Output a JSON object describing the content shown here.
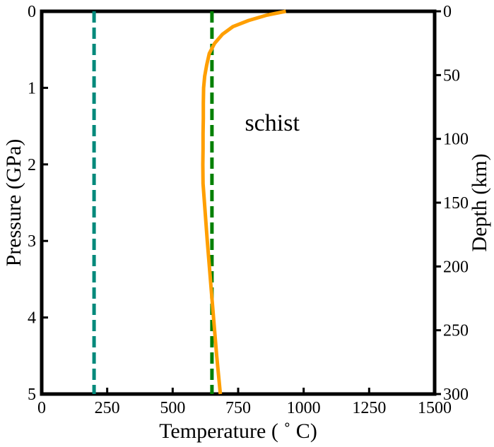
{
  "chart_data": {
    "type": "line",
    "xlabel": "Temperature ( ˚ C)",
    "ylabel": "Pressure (GPa)",
    "y2label": "Depth (km)",
    "xlim": [
      0,
      1500
    ],
    "ylim": [
      5,
      0
    ],
    "y2lim": [
      300,
      0
    ],
    "y_inverted": true,
    "grid": false,
    "x_ticks": [
      0,
      250,
      500,
      750,
      1000,
      1250,
      1500
    ],
    "y_ticks": [
      0,
      1,
      2,
      3,
      4,
      5
    ],
    "y2_ticks": [
      0,
      50,
      100,
      150,
      200,
      250,
      300
    ],
    "annotation": {
      "text": "schist",
      "x": 880,
      "pressure": 1.45
    },
    "series": [
      {
        "style": "dashed",
        "color": "#00897b",
        "x": [
          200,
          200
        ],
        "y": [
          0,
          5
        ]
      },
      {
        "style": "dashed",
        "color": "#008000",
        "x": [
          650,
          650
        ],
        "y": [
          0,
          5
        ]
      },
      {
        "style": "solid",
        "color": "#ff9f00",
        "x": [
          932,
          860,
          790,
          730,
          690,
          660,
          640,
          630,
          622,
          618,
          617,
          617,
          616,
          616,
          615,
          616,
          632,
          650,
          668,
          682
        ],
        "y": [
          0.0,
          0.05,
          0.12,
          0.2,
          0.3,
          0.42,
          0.55,
          0.7,
          0.85,
          1.0,
          1.2,
          1.4,
          1.6,
          1.8,
          2.0,
          2.25,
          3.0,
          3.75,
          4.5,
          5.0
        ]
      }
    ]
  }
}
